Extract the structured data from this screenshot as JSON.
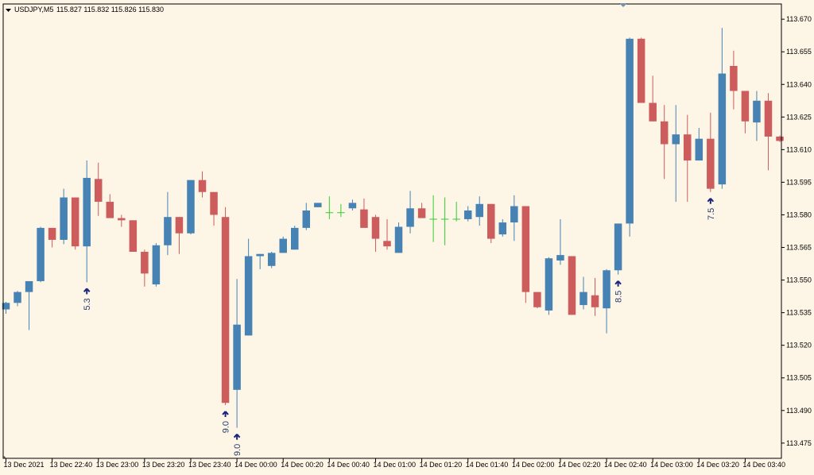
{
  "header": {
    "symbol": "USDJPY,M5",
    "ohlc": "115.827 115.832 115.826 115.830"
  },
  "colors": {
    "background": "#fdf5e6",
    "bull": "#4682b4",
    "bear": "#cd5c5c",
    "doji": "#32cd32",
    "frame": "#000000",
    "arrow": "#1a237e"
  },
  "chart_data": {
    "type": "candlestick",
    "title": "",
    "xlabel": "",
    "ylabel": "",
    "ylim": [
      113.468,
      113.677
    ],
    "grid": false,
    "y_ticks": [
      "113.670",
      "113.655",
      "113.640",
      "113.625",
      "113.610",
      "113.595",
      "113.580",
      "113.565",
      "113.550",
      "113.535",
      "113.520",
      "113.505",
      "113.490",
      "113.475"
    ],
    "x_ticks": [
      {
        "i": 0,
        "label": "13 Dec 2021"
      },
      {
        "i": 4,
        "label": "13 Dec 22:40"
      },
      {
        "i": 8,
        "label": "13 Dec 23:00"
      },
      {
        "i": 12,
        "label": "13 Dec 23:20"
      },
      {
        "i": 16,
        "label": "13 Dec 23:40"
      },
      {
        "i": 20,
        "label": "14 Dec 00:00"
      },
      {
        "i": 24,
        "label": "14 Dec 00:20"
      },
      {
        "i": 28,
        "label": "14 Dec 00:40"
      },
      {
        "i": 32,
        "label": "14 Dec 01:00"
      },
      {
        "i": 36,
        "label": "14 Dec 01:20"
      },
      {
        "i": 40,
        "label": "14 Dec 01:40"
      },
      {
        "i": 44,
        "label": "14 Dec 02:00"
      },
      {
        "i": 48,
        "label": "14 Dec 02:20"
      },
      {
        "i": 52,
        "label": "14 Dec 02:40"
      },
      {
        "i": 56,
        "label": "14 Dec 03:00"
      },
      {
        "i": 60,
        "label": "14 Dec 03:20"
      },
      {
        "i": 64,
        "label": "14 Dec 03:40"
      }
    ],
    "candles": [
      {
        "o": 113.5365,
        "h": 113.54,
        "l": 113.5345,
        "c": 113.5395
      },
      {
        "o": 113.5395,
        "h": 113.545,
        "l": 113.538,
        "c": 113.5445
      },
      {
        "o": 113.5445,
        "h": 113.549,
        "l": 113.527,
        "c": 113.5495
      },
      {
        "o": 113.5495,
        "h": 113.5745,
        "l": 113.549,
        "c": 113.574
      },
      {
        "o": 113.574,
        "h": 113.574,
        "l": 113.565,
        "c": 113.5685
      },
      {
        "o": 113.5685,
        "h": 113.592,
        "l": 113.5665,
        "c": 113.588
      },
      {
        "o": 113.588,
        "h": 113.588,
        "l": 113.564,
        "c": 113.5655
      },
      {
        "o": 113.5655,
        "h": 113.605,
        "l": 113.549,
        "c": 113.597
      },
      {
        "o": 113.5965,
        "h": 113.604,
        "l": 113.5795,
        "c": 113.586
      },
      {
        "o": 113.586,
        "h": 113.5895,
        "l": 113.579,
        "c": 113.5785
      },
      {
        "o": 113.5785,
        "h": 113.58,
        "l": 113.5745,
        "c": 113.5775
      },
      {
        "o": 113.5775,
        "h": 113.5775,
        "l": 113.563,
        "c": 113.563
      },
      {
        "o": 113.563,
        "h": 113.564,
        "l": 113.547,
        "c": 113.553
      },
      {
        "o": 113.548,
        "h": 113.567,
        "l": 113.547,
        "c": 113.566
      },
      {
        "o": 113.566,
        "h": 113.5905,
        "l": 113.5615,
        "c": 113.579
      },
      {
        "o": 113.579,
        "h": 113.579,
        "l": 113.562,
        "c": 113.5715
      },
      {
        "o": 113.5715,
        "h": 113.596,
        "l": 113.571,
        "c": 113.596
      },
      {
        "o": 113.596,
        "h": 113.6,
        "l": 113.588,
        "c": 113.5905
      },
      {
        "o": 113.5905,
        "h": 113.5905,
        "l": 113.575,
        "c": 113.58
      },
      {
        "o": 113.579,
        "h": 113.5835,
        "l": 113.4925,
        "c": 113.4935
      },
      {
        "o": 113.4995,
        "h": 113.5505,
        "l": 113.482,
        "c": 113.5295
      },
      {
        "o": 113.5245,
        "h": 113.569,
        "l": 113.5245,
        "c": 113.561
      },
      {
        "o": 113.561,
        "h": 113.562,
        "l": 113.555,
        "c": 113.562
      },
      {
        "o": 113.5565,
        "h": 113.563,
        "l": 113.5555,
        "c": 113.5625
      },
      {
        "o": 113.5625,
        "h": 113.57,
        "l": 113.5625,
        "c": 113.569
      },
      {
        "o": 113.564,
        "h": 113.575,
        "l": 113.564,
        "c": 113.574
      },
      {
        "o": 113.574,
        "h": 113.5855,
        "l": 113.573,
        "c": 113.582
      },
      {
        "o": 113.5835,
        "h": 113.5855,
        "l": 113.5835,
        "c": 113.5855
      },
      {
        "o": 113.581,
        "h": 113.5885,
        "l": 113.578,
        "c": 113.581
      },
      {
        "o": 113.581,
        "h": 113.585,
        "l": 113.579,
        "c": 113.581
      },
      {
        "o": 113.583,
        "h": 113.587,
        "l": 113.582,
        "c": 113.5855
      },
      {
        "o": 113.5825,
        "h": 113.5875,
        "l": 113.5755,
        "c": 113.574
      },
      {
        "o": 113.579,
        "h": 113.58,
        "l": 113.563,
        "c": 113.569
      },
      {
        "o": 113.568,
        "h": 113.578,
        "l": 113.564,
        "c": 113.5655
      },
      {
        "o": 113.5625,
        "h": 113.5765,
        "l": 113.563,
        "c": 113.5745
      },
      {
        "o": 113.5745,
        "h": 113.591,
        "l": 113.5715,
        "c": 113.583
      },
      {
        "o": 113.583,
        "h": 113.5855,
        "l": 113.5785,
        "c": 113.5785
      },
      {
        "o": 113.578,
        "h": 113.589,
        "l": 113.5675,
        "c": 113.578
      },
      {
        "o": 113.578,
        "h": 113.588,
        "l": 113.566,
        "c": 113.578
      },
      {
        "o": 113.578,
        "h": 113.586,
        "l": 113.577,
        "c": 113.578
      },
      {
        "o": 113.578,
        "h": 113.584,
        "l": 113.577,
        "c": 113.582
      },
      {
        "o": 113.579,
        "h": 113.5885,
        "l": 113.575,
        "c": 113.585
      },
      {
        "o": 113.585,
        "h": 113.585,
        "l": 113.567,
        "c": 113.569
      },
      {
        "o": 113.571,
        "h": 113.578,
        "l": 113.57,
        "c": 113.5765
      },
      {
        "o": 113.5765,
        "h": 113.589,
        "l": 113.568,
        "c": 113.584
      },
      {
        "o": 113.584,
        "h": 113.584,
        "l": 113.5395,
        "c": 113.5445
      },
      {
        "o": 113.5445,
        "h": 113.5445,
        "l": 113.537,
        "c": 113.5375
      },
      {
        "o": 113.536,
        "h": 113.5605,
        "l": 113.534,
        "c": 113.56
      },
      {
        "o": 113.559,
        "h": 113.578,
        "l": 113.557,
        "c": 113.5615
      },
      {
        "o": 113.561,
        "h": 113.561,
        "l": 113.534,
        "c": 113.534
      },
      {
        "o": 113.5385,
        "h": 113.5515,
        "l": 113.5365,
        "c": 113.5445
      },
      {
        "o": 113.543,
        "h": 113.551,
        "l": 113.5335,
        "c": 113.5375
      },
      {
        "o": 113.537,
        "h": 113.555,
        "l": 113.5255,
        "c": 113.5545
      },
      {
        "o": 113.5545,
        "h": 113.575,
        "l": 113.5525,
        "c": 113.576
      },
      {
        "o": 113.576,
        "h": 113.6615,
        "l": 113.57,
        "c": 113.661
      },
      {
        "o": 113.661,
        "h": 113.6615,
        "l": 113.6315,
        "c": 113.6315
      },
      {
        "o": 113.6315,
        "h": 113.644,
        "l": 113.623,
        "c": 113.623
      },
      {
        "o": 113.623,
        "h": 113.6305,
        "l": 113.5965,
        "c": 113.6125
      },
      {
        "o": 113.6125,
        "h": 113.6305,
        "l": 113.586,
        "c": 113.617
      },
      {
        "o": 113.617,
        "h": 113.626,
        "l": 113.586,
        "c": 113.605
      },
      {
        "o": 113.605,
        "h": 113.62,
        "l": 113.605,
        "c": 113.615
      },
      {
        "o": 113.615,
        "h": 113.627,
        "l": 113.5905,
        "c": 113.592
      },
      {
        "o": 113.594,
        "h": 113.666,
        "l": 113.592,
        "c": 113.645
      },
      {
        "o": 113.6485,
        "h": 113.6555,
        "l": 113.6285,
        "c": 113.637
      },
      {
        "o": 113.637,
        "h": 113.637,
        "l": 113.6175,
        "c": 113.623
      },
      {
        "o": 113.6225,
        "h": 113.637,
        "l": 113.614,
        "c": 113.6325
      },
      {
        "o": 113.6325,
        "h": 113.636,
        "l": 113.6005,
        "c": 113.616
      },
      {
        "o": 113.616,
        "h": 113.6165,
        "l": 113.6135,
        "c": 113.614
      }
    ],
    "signals": [
      {
        "i": 7,
        "label": "5.3"
      },
      {
        "i": 19,
        "label": "9.0"
      },
      {
        "i": 20,
        "label": "9.0"
      },
      {
        "i": 53,
        "label": "8.5"
      },
      {
        "i": 61,
        "label": "7.5"
      }
    ]
  }
}
